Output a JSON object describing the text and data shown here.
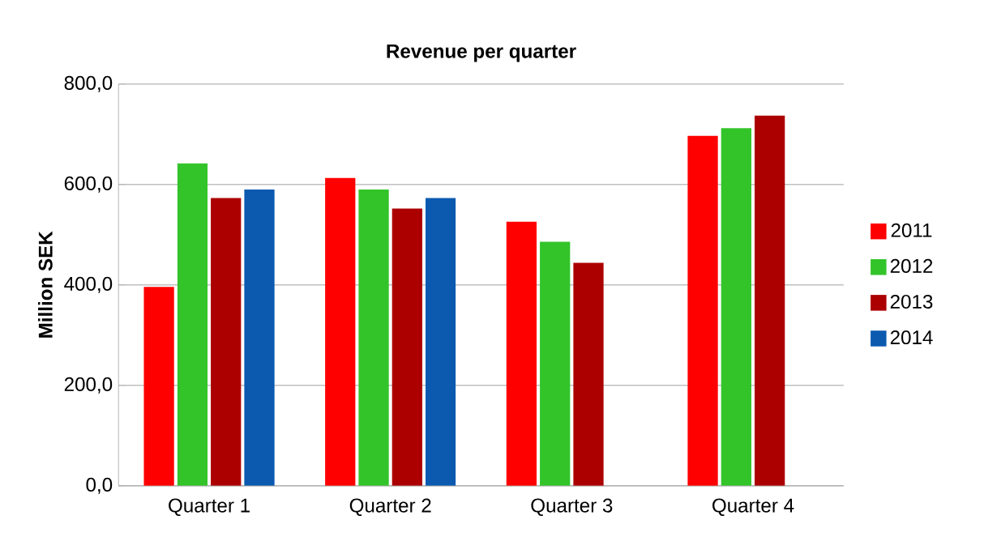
{
  "chart_data": {
    "type": "bar",
    "title": "Revenue per quarter",
    "ylabel": "Million SEK",
    "categories": [
      "Quarter 1",
      "Quarter 2",
      "Quarter 3",
      "Quarter 4"
    ],
    "series": [
      {
        "name": "2011",
        "color": "#ff0000",
        "values": [
          396,
          613,
          526,
          697
        ]
      },
      {
        "name": "2012",
        "color": "#33c42a",
        "values": [
          642,
          590,
          486,
          712
        ]
      },
      {
        "name": "2013",
        "color": "#ac0000",
        "values": [
          573,
          552,
          444,
          737
        ]
      },
      {
        "name": "2014",
        "color": "#0b5ab0",
        "values": [
          590,
          573,
          null,
          null
        ]
      }
    ],
    "ylim": [
      0,
      800
    ],
    "yticks": [
      {
        "value": 0,
        "label": "0,0"
      },
      {
        "value": 200,
        "label": "200,0"
      },
      {
        "value": 400,
        "label": "400,0"
      },
      {
        "value": 600,
        "label": "600,0"
      },
      {
        "value": 800,
        "label": "800,0"
      }
    ],
    "grid": "y",
    "legend": "right"
  }
}
